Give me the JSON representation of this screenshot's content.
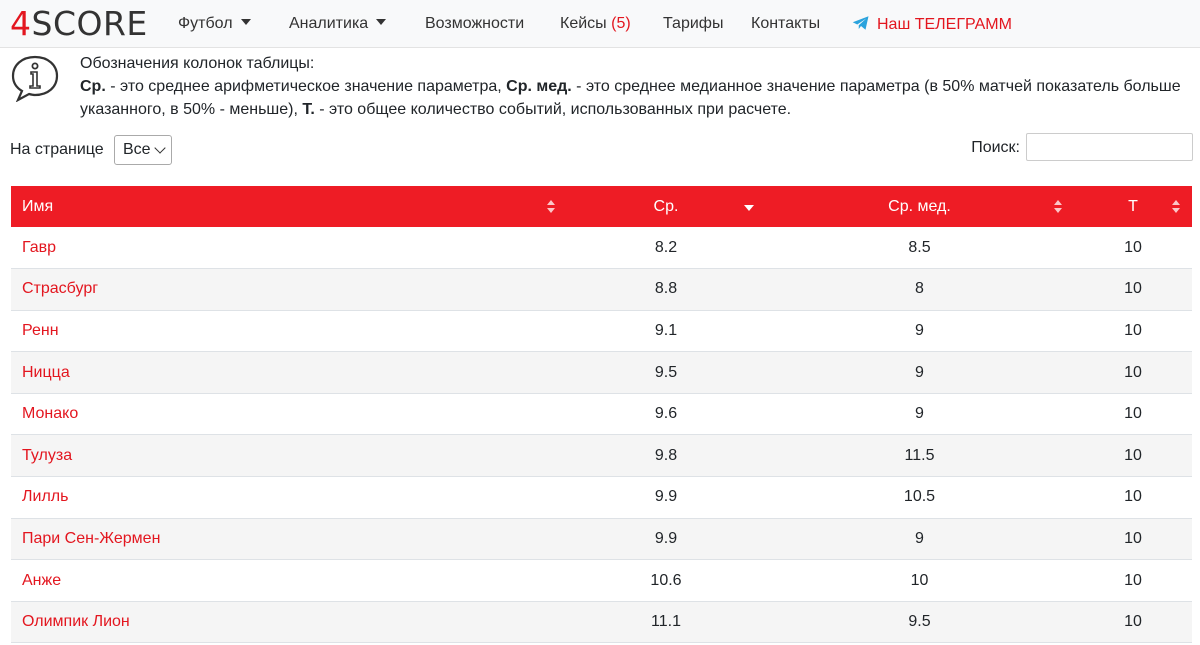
{
  "nav": {
    "logo_prefix": "4",
    "logo_rest": "SCORE",
    "items": [
      {
        "label": "Футбол",
        "dropdown": true
      },
      {
        "label": "Аналитика",
        "dropdown": true
      },
      {
        "label": "Возможности"
      },
      {
        "label": "Кейсы"
      },
      {
        "label": "Тарифы"
      },
      {
        "label": "Контакты"
      }
    ],
    "cases_count": "(5)",
    "telegram_label": "Наш ТЕЛЕГРАММ"
  },
  "info": {
    "title": "Обозначения колонок таблицы:",
    "term_avg": "Ср.",
    "desc_avg": " - это среднее арифметическое значение параметра, ",
    "term_median": "Ср. мед.",
    "desc_median": " - это среднее медианное значение параметра (в 50% матчей показатель больше указанного, в 50% - меньше), ",
    "term_total": "Т.",
    "desc_total": " - это общее количество событий, использованных при расчете."
  },
  "controls": {
    "per_page_label": "На странице",
    "per_page_value": "Все",
    "search_label": "Поиск:",
    "search_value": ""
  },
  "table": {
    "headers": [
      "Имя",
      "Ср.",
      "Ср. мед.",
      "Т"
    ],
    "rows": [
      {
        "name": "Гавр",
        "avg": "8.2",
        "median": "8.5",
        "total": "10"
      },
      {
        "name": "Страсбург",
        "avg": "8.8",
        "median": "8",
        "total": "10"
      },
      {
        "name": "Ренн",
        "avg": "9.1",
        "median": "9",
        "total": "10"
      },
      {
        "name": "Ницца",
        "avg": "9.5",
        "median": "9",
        "total": "10"
      },
      {
        "name": "Монако",
        "avg": "9.6",
        "median": "9",
        "total": "10"
      },
      {
        "name": "Тулуза",
        "avg": "9.8",
        "median": "11.5",
        "total": "10"
      },
      {
        "name": "Лилль",
        "avg": "9.9",
        "median": "10.5",
        "total": "10"
      },
      {
        "name": "Пари Сен-Жермен",
        "avg": "9.9",
        "median": "9",
        "total": "10"
      },
      {
        "name": "Анже",
        "avg": "10.6",
        "median": "10",
        "total": "10"
      },
      {
        "name": "Олимпик Лион",
        "avg": "11.1",
        "median": "9.5",
        "total": "10"
      }
    ]
  },
  "colors": {
    "accent": "#ee1c25",
    "link": "#e3161f"
  }
}
